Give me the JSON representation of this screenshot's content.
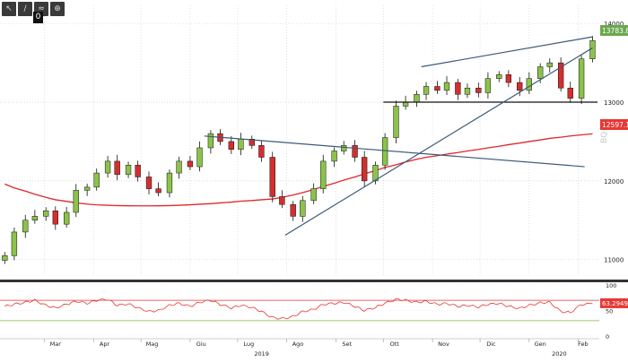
{
  "toolbar": {
    "icons": [
      "arrow-icon",
      "line-icon",
      "fib-icon",
      "zoom-icon"
    ],
    "zero_label": "0"
  },
  "price_badges": {
    "last": "13783.8896",
    "ma": "12597.1748"
  },
  "chart_data": [
    {
      "type": "candlestick",
      "title": "",
      "xlabel": "",
      "ylabel": "",
      "y_ticks": [
        11000,
        12000,
        13000,
        14000
      ],
      "y_tick_labels": [
        "11000",
        "12000",
        "13000",
        "14000"
      ],
      "ylim": [
        10780,
        14230
      ],
      "x_month_labels": [
        "Mar",
        "Apr",
        "Mag",
        "Giu",
        "Lug",
        "Ago",
        "Set",
        "Ott",
        "Nov",
        "Dic",
        "Gen",
        "Feb"
      ],
      "x_year_labels": [
        "2019",
        "2020"
      ],
      "grid": true,
      "weekly_close": [
        11050,
        11350,
        11500,
        11550,
        11620,
        11450,
        11600,
        11880,
        11920,
        12100,
        12250,
        12080,
        12200,
        12050,
        11900,
        11850,
        12100,
        12250,
        12180,
        12420,
        12600,
        12500,
        12400,
        12530,
        12450,
        12300,
        11800,
        11700,
        11550,
        11750,
        11900,
        12250,
        12380,
        12450,
        12300,
        12000,
        12200,
        12550,
        12950,
        13000,
        13100,
        13200,
        13150,
        13250,
        13100,
        13180,
        13120,
        13300,
        13350,
        13250,
        13150,
        13300,
        13450,
        13500,
        13180,
        13050,
        13550,
        13783.8896
      ],
      "moving_average": {
        "name": "",
        "last": 12597.1748,
        "values": [
          11960,
          11910,
          11870,
          11830,
          11790,
          11760,
          11740,
          11720,
          11705,
          11695,
          11690,
          11686,
          11683,
          11682,
          11682,
          11683,
          11686,
          11690,
          11696,
          11703,
          11710,
          11720,
          11730,
          11742,
          11750,
          11760,
          11770,
          11790,
          11820,
          11850,
          11890,
          11930,
          11970,
          12010,
          12050,
          12090,
          12130,
          12170,
          12205,
          12240,
          12275,
          12300,
          12320,
          12340,
          12360,
          12380,
          12400,
          12420,
          12440,
          12460,
          12480,
          12500,
          12520,
          12540,
          12555,
          12570,
          12585,
          12597.1748
        ]
      },
      "horizontal_line": 13000,
      "trendlines": [
        {
          "from": [
            "2019-06-10",
            12570
          ],
          "to": [
            "2020-02-05",
            12180
          ]
        },
        {
          "from": [
            "2019-07-31",
            11310
          ],
          "to": [
            "2020-02-10",
            13690
          ]
        },
        {
          "from": [
            "2019-10-25",
            13450
          ],
          "to": [
            "2020-02-10",
            13830
          ]
        }
      ]
    },
    {
      "type": "line",
      "title": "",
      "y_ticks": [
        0,
        50,
        100
      ],
      "y_tick_labels": [
        "0",
        "50",
        "100"
      ],
      "ylim": [
        0,
        100
      ],
      "levels": [
        30,
        70
      ],
      "series": [
        {
          "last": 63.2949,
          "last_label": "63.2949",
          "values": [
            58,
            62,
            66,
            70,
            60,
            55,
            62,
            68,
            64,
            70,
            72,
            60,
            63,
            55,
            48,
            50,
            60,
            64,
            58,
            66,
            70,
            62,
            55,
            60,
            56,
            48,
            36,
            34,
            38,
            48,
            52,
            62,
            64,
            66,
            58,
            50,
            56,
            64,
            72,
            70,
            66,
            68,
            62,
            64,
            58,
            60,
            57,
            62,
            64,
            58,
            54,
            60,
            65,
            66,
            48,
            46,
            62,
            63.2949
          ]
        }
      ]
    }
  ]
}
